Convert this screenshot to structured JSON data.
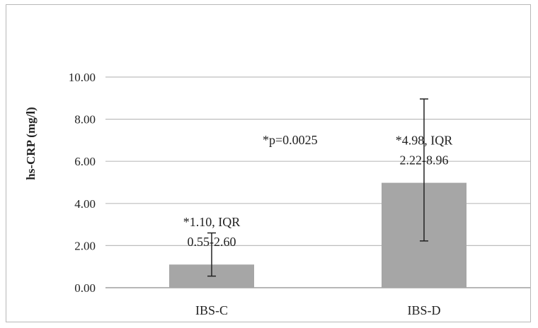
{
  "chart_data": {
    "type": "bar",
    "title": "",
    "xlabel": "",
    "ylabel": "hs-CRP (mg/l)",
    "ylim": [
      0,
      10
    ],
    "yticks": [
      "0.00",
      "2.00",
      "4.00",
      "6.00",
      "8.00",
      "10.00"
    ],
    "grid": true,
    "categories": [
      "IBS-C",
      "IBS-D"
    ],
    "series": [
      {
        "values": [
          1.1,
          4.98
        ],
        "error_low": [
          0.55,
          2.22
        ],
        "error_high": [
          2.6,
          8.96
        ],
        "color": "#a6a6a6"
      }
    ],
    "data_labels": [
      [
        "*1.10, IQR",
        "0.55-2.60"
      ],
      [
        "*4.98, IQR",
        "2.22-8.96"
      ]
    ],
    "annotations": [
      "*p=0.0025"
    ]
  }
}
